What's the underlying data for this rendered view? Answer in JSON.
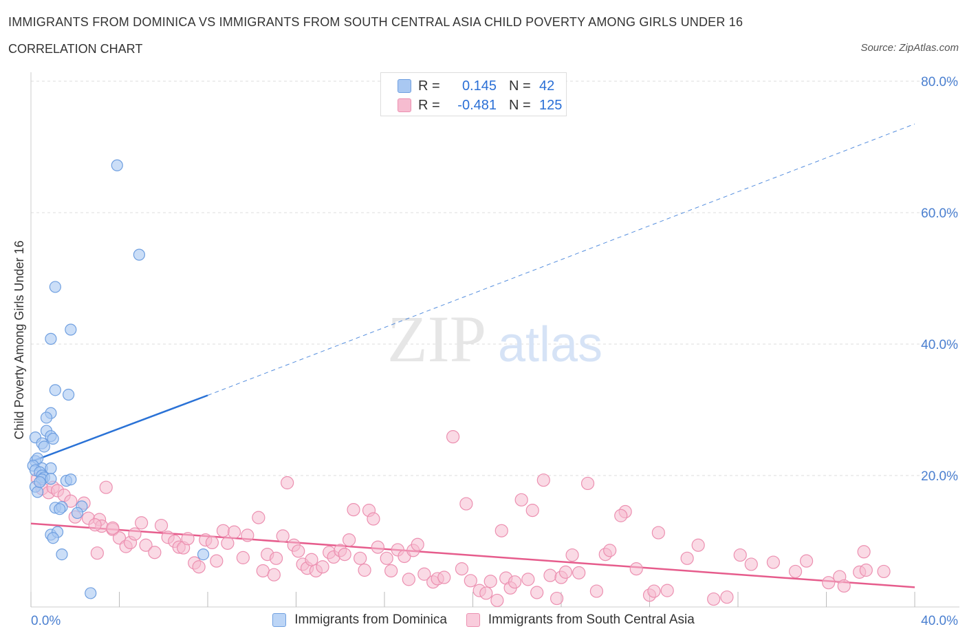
{
  "header": {
    "title": "IMMIGRANTS FROM DOMINICA VS IMMIGRANTS FROM SOUTH CENTRAL ASIA CHILD POVERTY AMONG GIRLS UNDER 16",
    "subtitle": "CORRELATION CHART",
    "source": "Source: ZipAtlas.com"
  },
  "colors": {
    "blue_fill": "#a9c8f2",
    "blue_stroke": "#6f9fe0",
    "blue_line": "#2a72d6",
    "pink_fill": "#f6bcd0",
    "pink_stroke": "#ec8fb0",
    "pink_line": "#e65c8c",
    "grid": "#dddddd",
    "axis_text": "#4a7fd0"
  },
  "legend": {
    "series1": {
      "r_label": "R =",
      "r_value": "0.145",
      "n_label": "N =",
      "n_value": "42"
    },
    "series2": {
      "r_label": "R =",
      "r_value": "-0.481",
      "n_label": "N =",
      "n_value": "125"
    }
  },
  "watermark": {
    "zip": "ZIP",
    "atlas": "atlas"
  },
  "chart_data": {
    "type": "scatter",
    "title": "IMMIGRANTS FROM DOMINICA VS IMMIGRANTS FROM SOUTH CENTRAL ASIA CHILD POVERTY AMONG GIRLS UNDER 16",
    "xlabel": "",
    "ylabel": "Child Poverty Among Girls Under 16",
    "xlim": [
      0,
      40
    ],
    "ylim": [
      0,
      80
    ],
    "x_tick_labels": [
      "0.0%",
      "40.0%"
    ],
    "y_ticks": [
      20,
      40,
      60,
      80
    ],
    "y_tick_labels": [
      "20.0%",
      "40.0%",
      "60.0%",
      "80.0%"
    ],
    "legend_position": "bottom",
    "series": [
      {
        "name": "Immigrants from Dominica",
        "color": "blue",
        "trend": {
          "x_start": 0,
          "y_start": 22.1,
          "x_solid_end": 8,
          "y_solid_end": 32.2,
          "x_dash_end": 40,
          "y_dash_end": 73.5
        },
        "points": [
          [
            3.9,
            67.2
          ],
          [
            4.9,
            53.6
          ],
          [
            1.1,
            48.7
          ],
          [
            1.8,
            42.2
          ],
          [
            0.9,
            40.8
          ],
          [
            1.1,
            33.0
          ],
          [
            1.7,
            32.3
          ],
          [
            0.9,
            29.5
          ],
          [
            0.7,
            28.8
          ],
          [
            0.7,
            26.8
          ],
          [
            0.9,
            26.0
          ],
          [
            1.0,
            25.6
          ],
          [
            0.2,
            25.8
          ],
          [
            0.5,
            24.9
          ],
          [
            0.6,
            24.4
          ],
          [
            0.2,
            22.2
          ],
          [
            0.3,
            22.6
          ],
          [
            0.1,
            21.5
          ],
          [
            0.5,
            21.1
          ],
          [
            0.9,
            21.1
          ],
          [
            0.2,
            20.8
          ],
          [
            0.4,
            20.5
          ],
          [
            0.5,
            20.0
          ],
          [
            0.6,
            19.7
          ],
          [
            0.5,
            19.4
          ],
          [
            0.9,
            19.5
          ],
          [
            1.6,
            19.2
          ],
          [
            1.8,
            19.4
          ],
          [
            0.2,
            18.3
          ],
          [
            0.3,
            17.5
          ],
          [
            1.1,
            15.1
          ],
          [
            1.4,
            15.2
          ],
          [
            1.3,
            14.9
          ],
          [
            2.3,
            15.3
          ],
          [
            2.1,
            14.3
          ],
          [
            0.9,
            11.0
          ],
          [
            1.2,
            11.4
          ],
          [
            1.0,
            10.5
          ],
          [
            1.4,
            8.0
          ],
          [
            7.8,
            8.0
          ],
          [
            2.7,
            2.1
          ],
          [
            0.4,
            19.0
          ]
        ]
      },
      {
        "name": "Immigrants from South Central Asia",
        "color": "pink",
        "trend": {
          "x_start": 0,
          "y_start": 12.7,
          "x_end": 40,
          "y_end": 3.0
        },
        "points": [
          [
            0.3,
            19.5
          ],
          [
            0.5,
            18.0
          ],
          [
            0.8,
            17.4
          ],
          [
            1.0,
            18.2
          ],
          [
            1.2,
            17.7
          ],
          [
            1.5,
            17.0
          ],
          [
            1.8,
            16.1
          ],
          [
            2.4,
            15.8
          ],
          [
            3.4,
            18.2
          ],
          [
            2.0,
            13.7
          ],
          [
            2.6,
            13.5
          ],
          [
            3.1,
            13.3
          ],
          [
            3.2,
            12.3
          ],
          [
            3.7,
            11.8
          ],
          [
            4.0,
            10.5
          ],
          [
            4.3,
            9.2
          ],
          [
            4.5,
            9.8
          ],
          [
            5.0,
            12.8
          ],
          [
            5.2,
            9.4
          ],
          [
            5.6,
            8.3
          ],
          [
            5.9,
            12.4
          ],
          [
            6.2,
            10.6
          ],
          [
            6.5,
            10.0
          ],
          [
            6.7,
            9.1
          ],
          [
            6.9,
            9.0
          ],
          [
            7.1,
            10.4
          ],
          [
            7.4,
            6.7
          ],
          [
            7.6,
            6.1
          ],
          [
            7.9,
            10.2
          ],
          [
            8.2,
            9.8
          ],
          [
            8.4,
            7.0
          ],
          [
            8.7,
            11.6
          ],
          [
            8.9,
            9.7
          ],
          [
            9.2,
            11.4
          ],
          [
            9.6,
            7.5
          ],
          [
            9.8,
            10.9
          ],
          [
            10.3,
            13.6
          ],
          [
            10.5,
            5.5
          ],
          [
            10.7,
            8.0
          ],
          [
            11.0,
            4.9
          ],
          [
            11.1,
            7.4
          ],
          [
            11.4,
            10.8
          ],
          [
            11.6,
            18.9
          ],
          [
            11.9,
            9.4
          ],
          [
            12.1,
            8.5
          ],
          [
            12.3,
            6.5
          ],
          [
            12.5,
            5.9
          ],
          [
            12.7,
            7.2
          ],
          [
            12.9,
            5.5
          ],
          [
            13.2,
            6.1
          ],
          [
            13.5,
            8.3
          ],
          [
            13.7,
            7.6
          ],
          [
            14.0,
            8.6
          ],
          [
            14.2,
            8.0
          ],
          [
            14.4,
            10.2
          ],
          [
            14.6,
            14.8
          ],
          [
            14.9,
            7.4
          ],
          [
            15.1,
            5.6
          ],
          [
            15.3,
            14.7
          ],
          [
            15.5,
            13.4
          ],
          [
            15.7,
            9.1
          ],
          [
            16.1,
            7.4
          ],
          [
            16.3,
            5.5
          ],
          [
            16.6,
            8.7
          ],
          [
            16.9,
            7.7
          ],
          [
            17.1,
            4.2
          ],
          [
            17.3,
            8.6
          ],
          [
            17.5,
            9.5
          ],
          [
            17.8,
            5.0
          ],
          [
            18.2,
            3.8
          ],
          [
            18.4,
            4.3
          ],
          [
            18.7,
            4.5
          ],
          [
            19.1,
            25.9
          ],
          [
            19.5,
            5.8
          ],
          [
            19.7,
            15.7
          ],
          [
            19.9,
            4.0
          ],
          [
            20.3,
            2.5
          ],
          [
            20.6,
            2.1
          ],
          [
            20.8,
            3.9
          ],
          [
            21.1,
            1.0
          ],
          [
            21.3,
            11.6
          ],
          [
            21.5,
            4.4
          ],
          [
            21.7,
            2.9
          ],
          [
            21.9,
            3.8
          ],
          [
            22.2,
            16.3
          ],
          [
            22.5,
            4.2
          ],
          [
            22.7,
            14.7
          ],
          [
            22.9,
            2.2
          ],
          [
            23.2,
            19.3
          ],
          [
            23.5,
            4.8
          ],
          [
            23.8,
            1.3
          ],
          [
            24.0,
            4.5
          ],
          [
            24.2,
            5.3
          ],
          [
            24.5,
            7.9
          ],
          [
            24.8,
            5.2
          ],
          [
            25.2,
            18.8
          ],
          [
            25.6,
            2.4
          ],
          [
            26.0,
            8.0
          ],
          [
            26.2,
            8.6
          ],
          [
            26.9,
            14.5
          ],
          [
            26.7,
            13.9
          ],
          [
            27.4,
            5.8
          ],
          [
            28.0,
            1.8
          ],
          [
            28.2,
            2.4
          ],
          [
            28.4,
            11.3
          ],
          [
            28.8,
            2.5
          ],
          [
            29.7,
            7.4
          ],
          [
            30.2,
            9.4
          ],
          [
            30.9,
            1.2
          ],
          [
            31.5,
            1.5
          ],
          [
            32.1,
            7.9
          ],
          [
            32.6,
            6.5
          ],
          [
            33.6,
            6.8
          ],
          [
            34.6,
            5.4
          ],
          [
            35.1,
            7.0
          ],
          [
            36.1,
            3.7
          ],
          [
            36.6,
            4.6
          ],
          [
            37.5,
            5.3
          ],
          [
            37.7,
            8.4
          ],
          [
            37.8,
            5.6
          ],
          [
            38.6,
            5.4
          ],
          [
            36.8,
            3.2
          ],
          [
            3.0,
            8.2
          ],
          [
            3.7,
            12.0
          ],
          [
            4.7,
            11.1
          ],
          [
            2.9,
            12.5
          ]
        ]
      }
    ]
  }
}
